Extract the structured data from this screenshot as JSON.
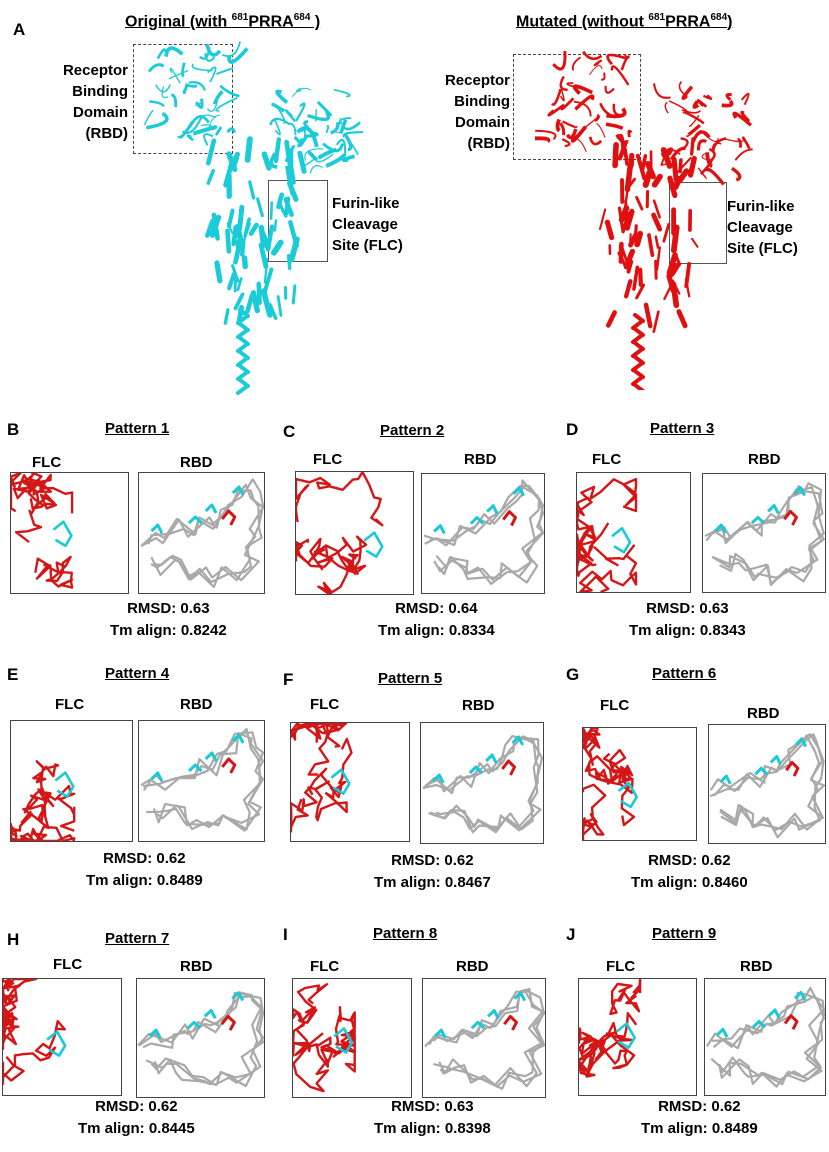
{
  "panel_a": {
    "letter": "A",
    "original": {
      "title_prefix": "Original (with ",
      "sup1": "681",
      "mid": "PRRA",
      "sup2": "684",
      "suffix": " )",
      "color": "#1ccbd8"
    },
    "mutated": {
      "title_prefix": "Mutated (without ",
      "sup1": "681",
      "mid": "PRRA",
      "sup2": "684",
      "suffix": ")",
      "color": "#e01010"
    },
    "rbd_label": [
      "Receptor",
      "Binding",
      "Domain",
      "(RBD)"
    ],
    "flc_label": [
      "Furin-like",
      "Cleavage",
      "Site (FLC)"
    ]
  },
  "colors": {
    "flc": "#d41616",
    "rbd": "#a9a9a9",
    "highlight": "#19c9d6",
    "red_mark": "#d41616"
  },
  "panels": [
    {
      "letter": "B",
      "title": "Pattern 1",
      "flc": "FLC",
      "rbd": "RBD",
      "rmsd": "RMSD: 0.63",
      "tm": "Tm align: 0.8242"
    },
    {
      "letter": "C",
      "title": "Pattern 2",
      "flc": "FLC",
      "rbd": "RBD",
      "rmsd": "RMSD: 0.64",
      "tm": "Tm align: 0.8334"
    },
    {
      "letter": "D",
      "title": "Pattern 3",
      "flc": "FLC",
      "rbd": "RBD",
      "rmsd": "RMSD: 0.63",
      "tm": "Tm align: 0.8343"
    },
    {
      "letter": "E",
      "title": "Pattern 4",
      "flc": "FLC",
      "rbd": "RBD",
      "rmsd": "RMSD: 0.62",
      "tm": "Tm align: 0.8489"
    },
    {
      "letter": "F",
      "title": "Pattern 5",
      "flc": "FLC",
      "rbd": "RBD",
      "rmsd": "RMSD: 0.62",
      "tm": "Tm align: 0.8467"
    },
    {
      "letter": "G",
      "title": "Pattern 6",
      "flc": "FLC",
      "rbd": "RBD",
      "rmsd": "RMSD: 0.62",
      "tm": "Tm align: 0.8460"
    },
    {
      "letter": "H",
      "title": "Pattern 7",
      "flc": "FLC",
      "rbd": "RBD",
      "rmsd": "RMSD: 0.62",
      "tm": "Tm align: 0.8445"
    },
    {
      "letter": "I",
      "title": "Pattern 8",
      "flc": "FLC",
      "rbd": "RBD",
      "rmsd": "RMSD: 0.63",
      "tm": "Tm align: 0.8398"
    },
    {
      "letter": "J",
      "title": "Pattern 9",
      "flc": "FLC",
      "rbd": "RBD",
      "rmsd": "RMSD: 0.62",
      "tm": "Tm align: 0.8489"
    }
  ]
}
